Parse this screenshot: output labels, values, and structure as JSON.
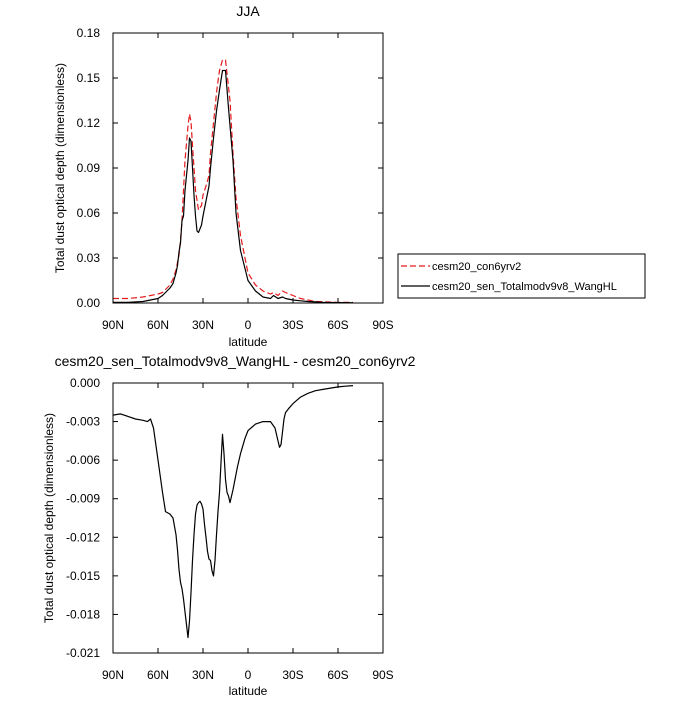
{
  "chart_data": [
    {
      "type": "line",
      "title": "JJA",
      "xlabel": "latitude",
      "ylabel": "Total dust optical depth (dimensionless)",
      "xlim": [
        -90,
        90
      ],
      "ylim": [
        0,
        0.18
      ],
      "x_ticks": [
        -90,
        -60,
        -30,
        0,
        30,
        60,
        90
      ],
      "x_tick_labels": [
        "90N",
        "60N",
        "30N",
        "0",
        "30S",
        "60S",
        "90S"
      ],
      "y_ticks": [
        0,
        0.03,
        0.06,
        0.09,
        0.12,
        0.15,
        0.18
      ],
      "y_tick_labels": [
        "0.00",
        "0.03",
        "0.06",
        "0.09",
        "0.12",
        "0.15",
        "0.18"
      ],
      "legend_position": "right",
      "series": [
        {
          "name": "cesm20_con6yrv2",
          "color": "#e41a1c",
          "dash": "dashed",
          "x": [
            -90,
            -80,
            -70,
            -65,
            -60,
            -57,
            -55,
            -52,
            -50,
            -48,
            -46,
            -45,
            -44,
            -43,
            -42,
            -40,
            -39,
            -38,
            -37,
            -35,
            -33,
            -31,
            -30,
            -28,
            -26,
            -25,
            -23,
            -21,
            -20,
            -19,
            -17,
            -15,
            -12,
            -10,
            -8,
            -5,
            0,
            5,
            10,
            15,
            17,
            20,
            23,
            25,
            30,
            35,
            40,
            45,
            50,
            60,
            70
          ],
          "y": [
            0.003,
            0.003,
            0.004,
            0.005,
            0.006,
            0.007,
            0.009,
            0.012,
            0.016,
            0.022,
            0.032,
            0.042,
            0.055,
            0.075,
            0.095,
            0.118,
            0.126,
            0.121,
            0.105,
            0.075,
            0.062,
            0.065,
            0.072,
            0.078,
            0.085,
            0.1,
            0.12,
            0.14,
            0.148,
            0.155,
            0.162,
            0.162,
            0.135,
            0.1,
            0.07,
            0.045,
            0.02,
            0.012,
            0.008,
            0.006,
            0.007,
            0.005,
            0.008,
            0.007,
            0.005,
            0.003,
            0.002,
            0.001,
            0.0008,
            0.0005,
            0.0005
          ]
        },
        {
          "name": "cesm20_sen_Totalmodv9v8_WangHL",
          "color": "#000000",
          "dash": "solid",
          "x": [
            -90,
            -80,
            -70,
            -65,
            -60,
            -57,
            -55,
            -52,
            -50,
            -48,
            -47,
            -46,
            -45,
            -44,
            -43,
            -42,
            -40,
            -39,
            -38,
            -37,
            -36,
            -35,
            -34,
            -33,
            -31,
            -30,
            -28,
            -26,
            -25,
            -23,
            -21,
            -20,
            -19,
            -17,
            -15,
            -13,
            -10,
            -8,
            -5,
            0,
            5,
            10,
            15,
            17,
            20,
            23,
            25,
            30,
            35,
            40,
            45,
            50,
            60,
            70
          ],
          "y": [
            0.0005,
            0.0005,
            0.001,
            0.002,
            0.003,
            0.005,
            0.007,
            0.01,
            0.013,
            0.02,
            0.025,
            0.034,
            0.04,
            0.055,
            0.058,
            0.075,
            0.095,
            0.11,
            0.108,
            0.09,
            0.072,
            0.058,
            0.048,
            0.047,
            0.052,
            0.058,
            0.068,
            0.078,
            0.09,
            0.11,
            0.128,
            0.135,
            0.142,
            0.155,
            0.155,
            0.13,
            0.095,
            0.06,
            0.035,
            0.015,
            0.008,
            0.004,
            0.003,
            0.005,
            0.003,
            0.004,
            0.003,
            0.002,
            0.0015,
            0.001,
            0.0007,
            0.0005,
            0.0003,
            0.0002
          ]
        }
      ]
    },
    {
      "type": "line",
      "title": "cesm20_sen_Totalmodv9v8_WangHL - cesm20_con6yrv2",
      "xlabel": "latitude",
      "ylabel": "Total dust optical depth (dimensionless)",
      "xlim": [
        -90,
        90
      ],
      "ylim": [
        -0.021,
        0
      ],
      "x_ticks": [
        -90,
        -60,
        -30,
        0,
        30,
        60,
        90
      ],
      "x_tick_labels": [
        "90N",
        "60N",
        "30N",
        "0",
        "30S",
        "60S",
        "90S"
      ],
      "y_ticks": [
        0,
        -0.003,
        -0.006,
        -0.009,
        -0.012,
        -0.015,
        -0.018,
        -0.021
      ],
      "y_tick_labels": [
        "0.000",
        "-0.003",
        "-0.006",
        "-0.009",
        "-0.012",
        "-0.015",
        "-0.018",
        "-0.021"
      ],
      "series": [
        {
          "color": "#000000",
          "dash": "solid",
          "x": [
            -90,
            -85,
            -80,
            -75,
            -70,
            -67,
            -65,
            -63,
            -60,
            -57,
            -55,
            -52,
            -50,
            -48,
            -47,
            -46,
            -45,
            -44,
            -43,
            -42,
            -41,
            -40,
            -39,
            -38,
            -37,
            -36,
            -35,
            -34,
            -33,
            -32,
            -31,
            -30,
            -29,
            -28,
            -27,
            -26,
            -25,
            -24,
            -23,
            -22,
            -21,
            -20,
            -19,
            -18,
            -17,
            -16,
            -15,
            -14,
            -13,
            -12,
            -10,
            -7,
            -5,
            -2,
            0,
            5,
            10,
            15,
            18,
            20,
            21,
            22,
            23,
            24,
            25,
            27,
            30,
            35,
            40,
            45,
            50,
            55,
            60,
            65,
            70
          ],
          "y": [
            -0.0025,
            -0.0024,
            -0.0026,
            -0.0028,
            -0.0029,
            -0.003,
            -0.0028,
            -0.0035,
            -0.006,
            -0.0085,
            -0.01,
            -0.0102,
            -0.0105,
            -0.0118,
            -0.013,
            -0.0145,
            -0.0155,
            -0.016,
            -0.0168,
            -0.0178,
            -0.0188,
            -0.0198,
            -0.0185,
            -0.0163,
            -0.0138,
            -0.0118,
            -0.0102,
            -0.0095,
            -0.0093,
            -0.0092,
            -0.0094,
            -0.0098,
            -0.011,
            -0.012,
            -0.0131,
            -0.0137,
            -0.0138,
            -0.0146,
            -0.015,
            -0.0138,
            -0.0118,
            -0.01,
            -0.0085,
            -0.0062,
            -0.004,
            -0.0055,
            -0.0075,
            -0.0085,
            -0.0088,
            -0.0093,
            -0.0083,
            -0.0065,
            -0.0055,
            -0.0043,
            -0.0037,
            -0.0032,
            -0.003,
            -0.003,
            -0.0035,
            -0.0045,
            -0.005,
            -0.0048,
            -0.0038,
            -0.0028,
            -0.0023,
            -0.002,
            -0.0016,
            -0.0011,
            -0.0008,
            -0.0006,
            -0.0005,
            -0.0004,
            -0.0003,
            -0.00025,
            -0.0002
          ]
        }
      ]
    }
  ]
}
